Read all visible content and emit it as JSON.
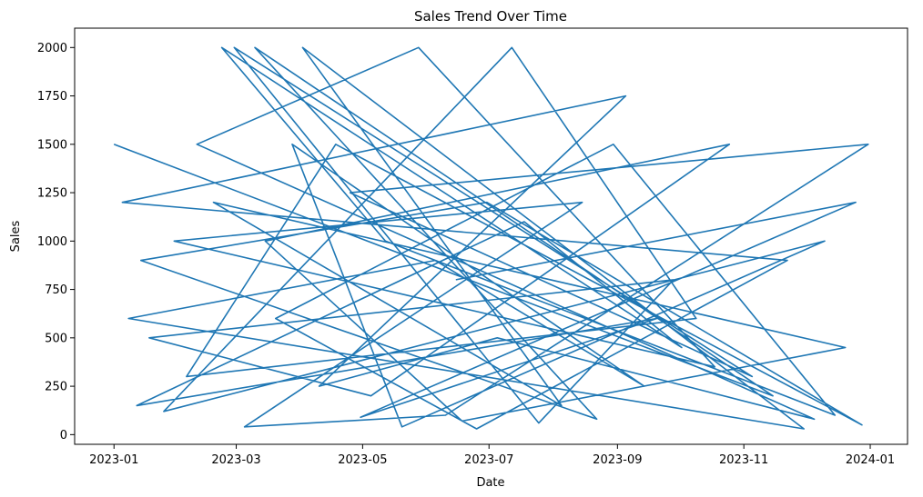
{
  "chart_data": {
    "type": "line",
    "title": "Sales Trend Over Time",
    "xlabel": "Date",
    "ylabel": "Sales",
    "x_axis_type": "date",
    "xlim": [
      "2022-12-13",
      "2024-01-19"
    ],
    "ylim": [
      -50,
      2100
    ],
    "grid": false,
    "legend": "none",
    "line_color": "#1f77b4",
    "x_ticks": [
      {
        "date": "2023-01-01",
        "label": "2023-01"
      },
      {
        "date": "2023-03-01",
        "label": "2023-03"
      },
      {
        "date": "2023-05-01",
        "label": "2023-05"
      },
      {
        "date": "2023-07-01",
        "label": "2023-07"
      },
      {
        "date": "2023-09-01",
        "label": "2023-09"
      },
      {
        "date": "2023-11-01",
        "label": "2023-11"
      },
      {
        "date": "2024-01-01",
        "label": "2024-01"
      }
    ],
    "y_ticks": [
      {
        "value": 0,
        "label": "0"
      },
      {
        "value": 250,
        "label": "250"
      },
      {
        "value": 500,
        "label": "500"
      },
      {
        "value": 750,
        "label": "750"
      },
      {
        "value": 1000,
        "label": "1000"
      },
      {
        "value": 1250,
        "label": "1250"
      },
      {
        "value": 1500,
        "label": "1500"
      },
      {
        "value": 1750,
        "label": "1750"
      },
      {
        "value": 2000,
        "label": "2000"
      }
    ],
    "series": [
      {
        "x": [
          "2023-01-01",
          "2023-11-15",
          "2023-03-10",
          "2023-08-22",
          "2023-01-14",
          "2023-06-30",
          "2023-12-28",
          "2023-04-18",
          "2023-02-05",
          "2023-10-09",
          "2023-07-12",
          "2023-01-25",
          "2023-12-10",
          "2023-05-20",
          "2023-03-28",
          "2023-09-14",
          "2023-06-05",
          "2023-01-08",
          "2023-11-30",
          "2023-04-02",
          "2023-08-05",
          "2023-02-18",
          "2023-12-20",
          "2023-06-18",
          "2023-03-15",
          "2023-10-25",
          "2023-05-05",
          "2023-01-18",
          "2023-09-28",
          "2023-07-25",
          "2023-02-28",
          "2023-11-05",
          "2023-04-25",
          "2023-12-31",
          "2023-06-10",
          "2023-03-05",
          "2023-08-15",
          "2023-01-30",
          "2023-10-18",
          "2023-05-28",
          "2023-02-10",
          "2023-12-05",
          "2023-07-05",
          "2023-04-10",
          "2023-09-05",
          "2023-01-05",
          "2023-11-22",
          "2023-06-25",
          "2023-03-20",
          "2023-08-30",
          "2023-12-15",
          "2023-05-12",
          "2023-02-22",
          "2023-10-02",
          "2023-07-18",
          "2023-01-12",
          "2023-09-20",
          "2023-04-30",
          "2023-12-25",
          "2023-06-15"
        ],
        "y": [
          1500,
          200,
          2000,
          80,
          900,
          1200,
          50,
          1500,
          300,
          600,
          2000,
          120,
          1000,
          40,
          1500,
          250,
          900,
          600,
          30,
          2000,
          150,
          1200,
          450,
          70,
          1000,
          1500,
          200,
          500,
          800,
          60,
          2000,
          300,
          1250,
          1500,
          100,
          40,
          1200,
          1000,
          350,
          2000,
          1500,
          80,
          500,
          250,
          1750,
          1200,
          900,
          30,
          600,
          1500,
          100,
          1000,
          2000,
          450,
          1100,
          150,
          600,
          90,
          1200,
          800
        ]
      }
    ]
  }
}
